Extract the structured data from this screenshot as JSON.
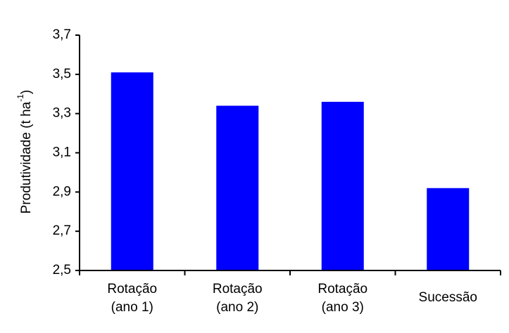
{
  "chart_data": {
    "type": "bar",
    "categories": [
      [
        "Rotação",
        "(ano 1)"
      ],
      [
        "Rotação",
        "(ano 2)"
      ],
      [
        "Rotação",
        "(ano 3)"
      ],
      [
        "Sucessão"
      ]
    ],
    "values": [
      3.51,
      3.34,
      3.36,
      2.92
    ],
    "title": "",
    "xlabel": "",
    "ylabel": {
      "main": "Produtividade (t ha",
      "superscript": "-1",
      "close": ")"
    },
    "ylim": [
      2.5,
      3.7
    ],
    "yticks": [
      2.5,
      2.7,
      2.9,
      3.1,
      3.3,
      3.5,
      3.7
    ],
    "ytick_labels": [
      "2,5",
      "2,7",
      "2,9",
      "3,1",
      "3,3",
      "3,5",
      "3,7"
    ],
    "grid": false,
    "legend": "none",
    "bar_color": "#0000FF",
    "axis_color": "#000000"
  }
}
